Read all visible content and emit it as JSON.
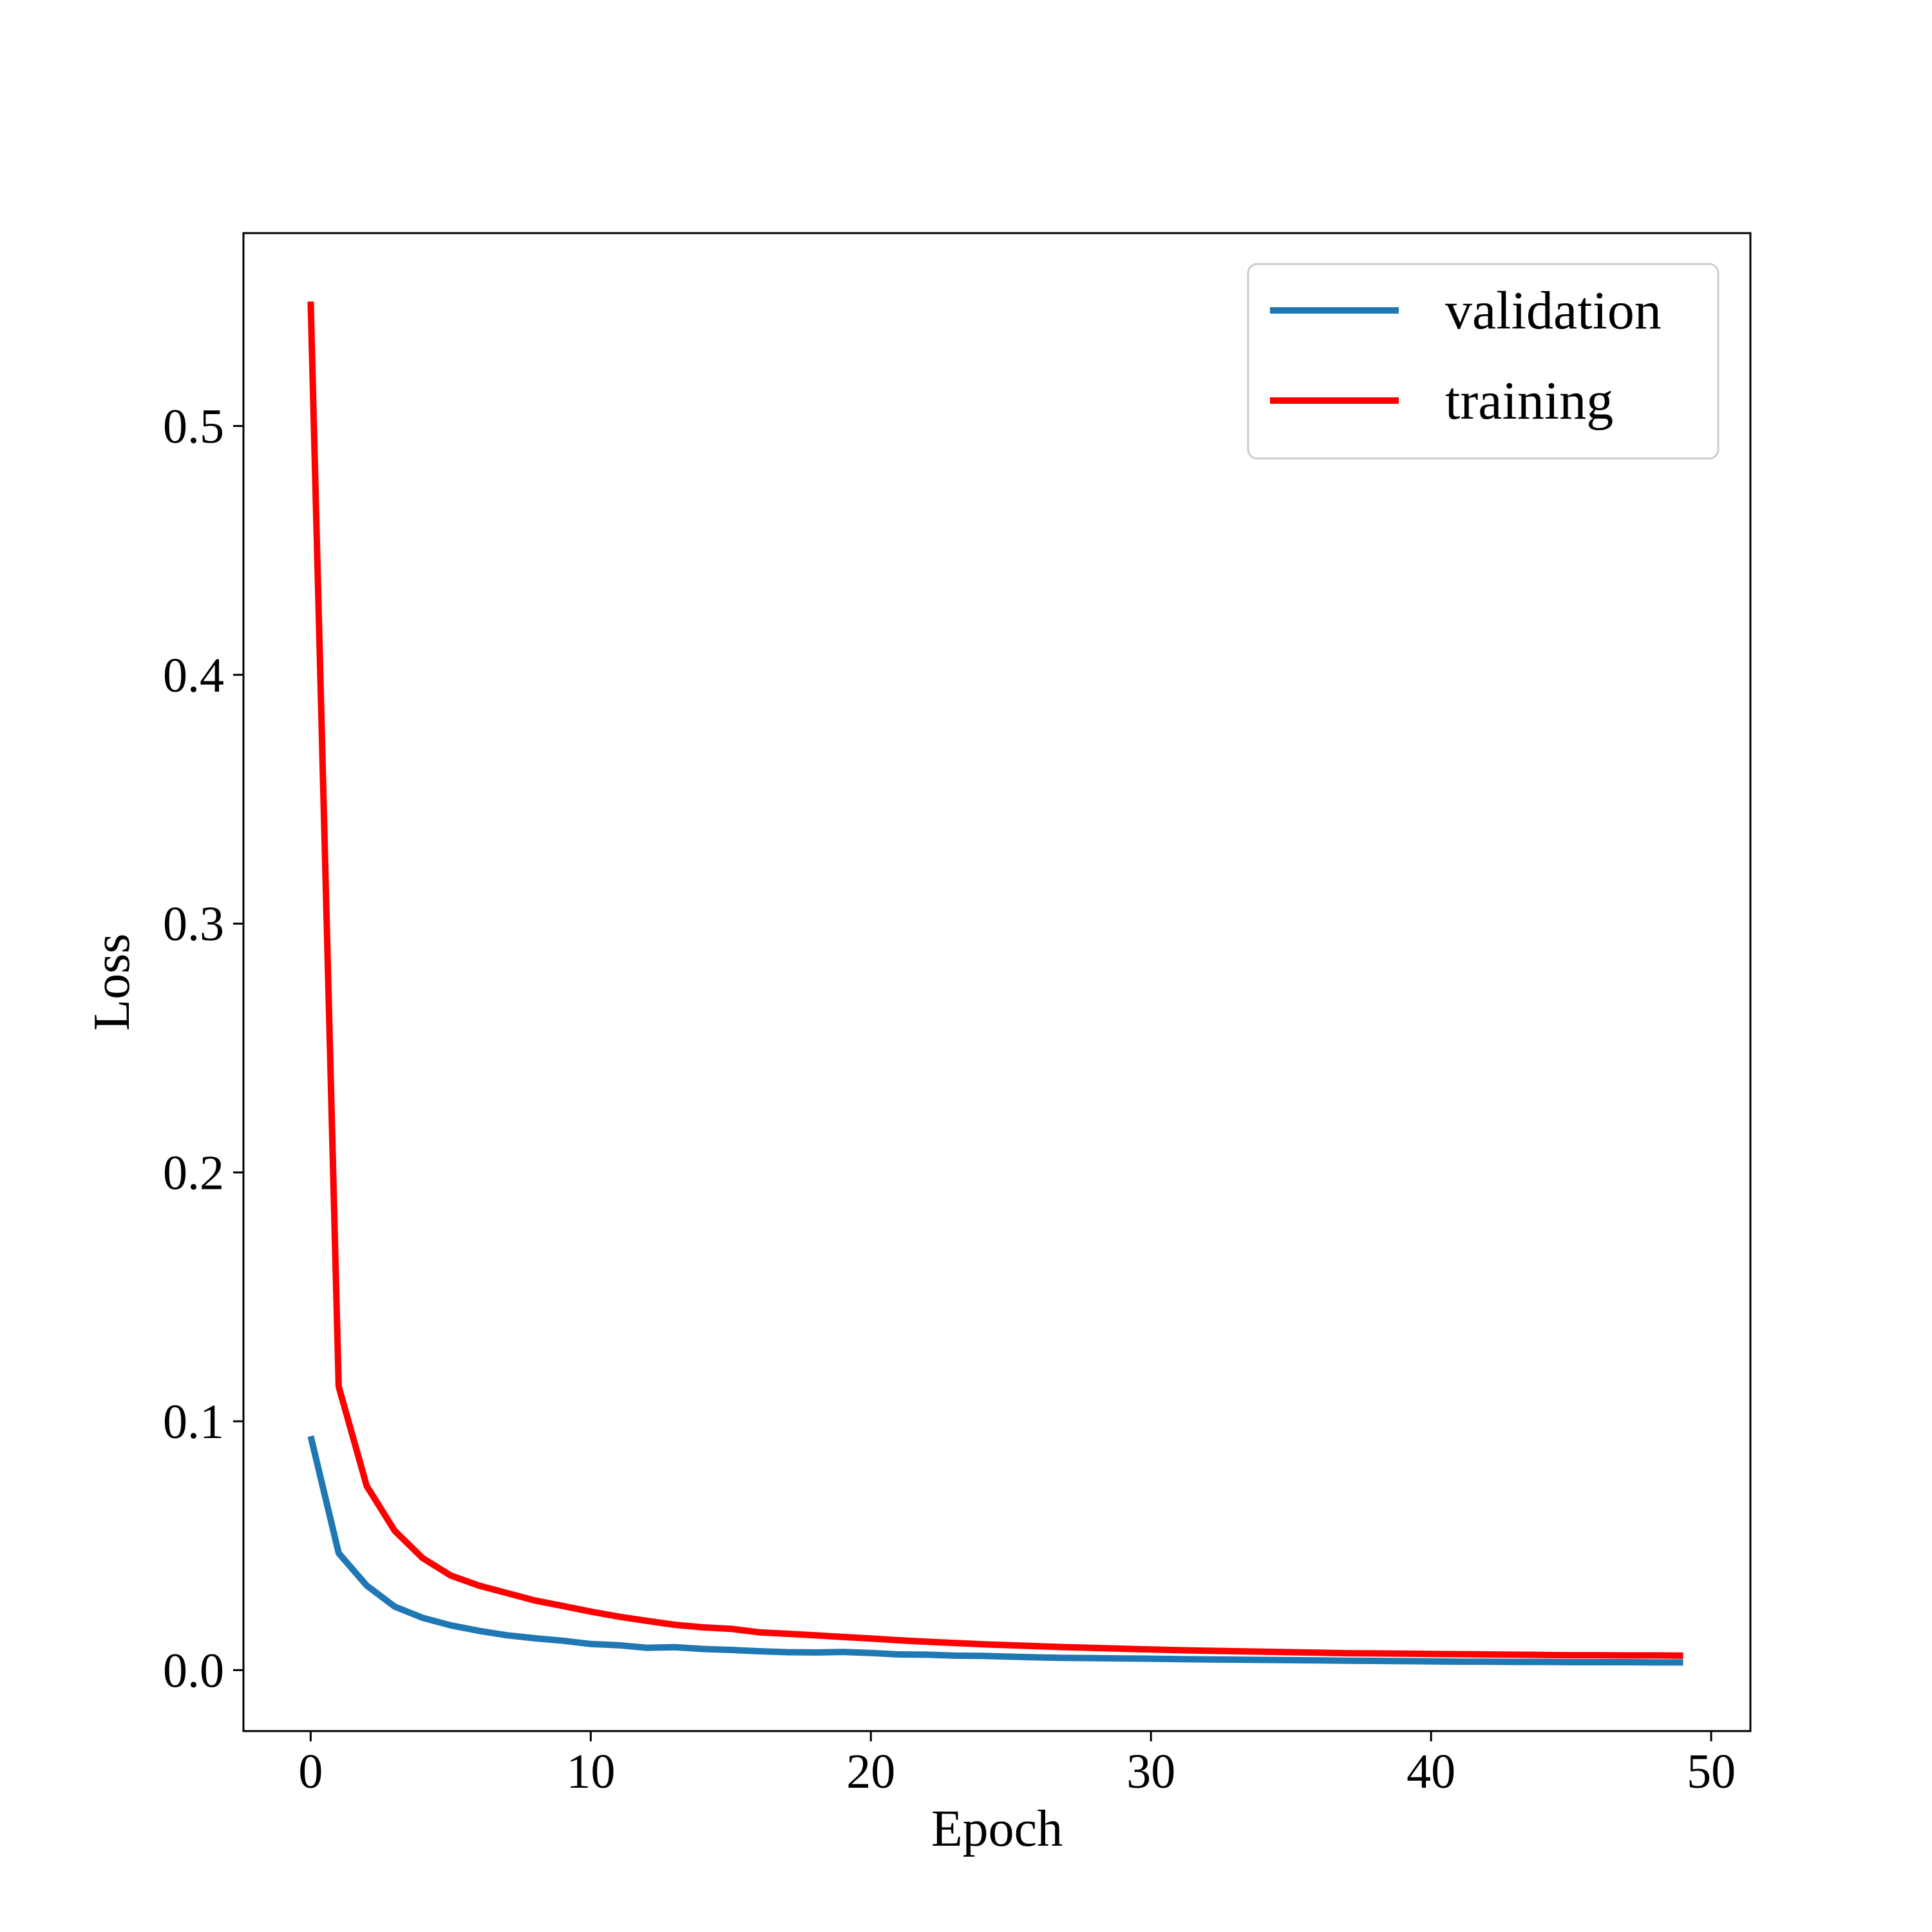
{
  "chart_data": {
    "type": "line",
    "title": "",
    "xlabel": "Epoch",
    "ylabel": "Loss",
    "xlim": [
      -2.4,
      51.4
    ],
    "ylim": [
      -0.0245,
      0.5775
    ],
    "xticks": [
      0,
      10,
      20,
      30,
      40,
      50
    ],
    "xtick_labels": [
      "0",
      "10",
      "20",
      "30",
      "40",
      "50"
    ],
    "yticks": [
      0.0,
      0.1,
      0.2,
      0.3,
      0.4,
      0.5
    ],
    "ytick_labels": [
      "0.0",
      "0.1",
      "0.2",
      "0.3",
      "0.4",
      "0.5"
    ],
    "grid": false,
    "legend": {
      "position": "top-right"
    },
    "x": [
      0,
      1,
      2,
      3,
      4,
      5,
      6,
      7,
      8,
      9,
      10,
      11,
      12,
      13,
      14,
      15,
      16,
      17,
      18,
      19,
      20,
      21,
      22,
      23,
      24,
      25,
      26,
      27,
      28,
      29,
      30,
      31,
      32,
      33,
      34,
      35,
      36,
      37,
      38,
      39,
      40,
      41,
      42,
      43,
      44,
      45,
      46,
      47,
      48,
      49
    ],
    "series": [
      {
        "name": "validation",
        "color": "#1f77b4",
        "values": [
          0.094,
          0.047,
          0.034,
          0.0255,
          0.021,
          0.018,
          0.0158,
          0.014,
          0.0128,
          0.0118,
          0.0105,
          0.01,
          0.009,
          0.0092,
          0.0085,
          0.0081,
          0.0076,
          0.0072,
          0.0071,
          0.0073,
          0.0069,
          0.0063,
          0.0062,
          0.0058,
          0.0057,
          0.0054,
          0.0051,
          0.0049,
          0.0048,
          0.0047,
          0.0046,
          0.0044,
          0.0043,
          0.0042,
          0.0041,
          0.004,
          0.0039,
          0.0038,
          0.0037,
          0.0036,
          0.0035,
          0.0034,
          0.0034,
          0.0033,
          0.0033,
          0.0032,
          0.0032,
          0.0032,
          0.0031,
          0.0031
        ]
      },
      {
        "name": "training",
        "color": "#ff0000",
        "values": [
          0.55,
          0.114,
          0.074,
          0.056,
          0.045,
          0.038,
          0.034,
          0.031,
          0.028,
          0.0258,
          0.0235,
          0.0215,
          0.0198,
          0.0182,
          0.0172,
          0.0166,
          0.0152,
          0.0146,
          0.014,
          0.0133,
          0.0127,
          0.012,
          0.0114,
          0.0109,
          0.0104,
          0.01,
          0.0096,
          0.0092,
          0.0089,
          0.0086,
          0.0083,
          0.008,
          0.0078,
          0.0076,
          0.0074,
          0.0072,
          0.007,
          0.0068,
          0.0067,
          0.0066,
          0.0065,
          0.0064,
          0.0063,
          0.0062,
          0.0061,
          0.006,
          0.006,
          0.0059,
          0.0059,
          0.0058
        ]
      }
    ]
  }
}
